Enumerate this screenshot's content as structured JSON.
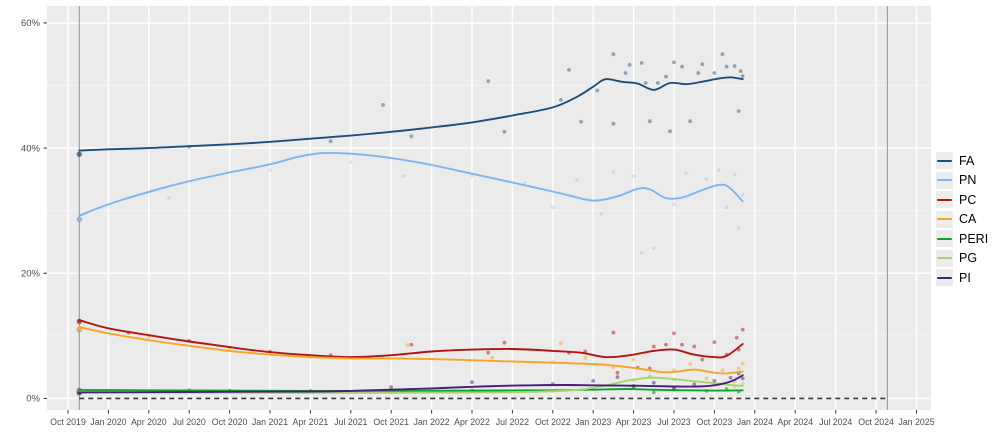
{
  "chart_data": {
    "type": "line",
    "title": "",
    "xlabel": "",
    "ylabel": "",
    "grid": true,
    "legend_position": "right",
    "x_axis": {
      "unit": "quarters since Oct 2019",
      "domain_quarters": [
        -0.52,
        21.36
      ],
      "tick_quarters": [
        0,
        1,
        2,
        3,
        4,
        5,
        6,
        7,
        8,
        9,
        10,
        11,
        12,
        13,
        14,
        15,
        16,
        17,
        18,
        19,
        20,
        21
      ],
      "tick_labels": [
        "Oct 2019",
        "Jan 2020",
        "Apr 2020",
        "Jul 2020",
        "Oct 2020",
        "Jan 2021",
        "Apr 2021",
        "Jul 2021",
        "Oct 2021",
        "Jan 2022",
        "Apr 2022",
        "Jul 2022",
        "Oct 2022",
        "Jan 2023",
        "Apr 2023",
        "Jul 2023",
        "Oct 2023",
        "Jan 2024",
        "Apr 2024",
        "Jul 2024",
        "Oct 2024",
        "Jan 2025"
      ]
    },
    "y_axis": {
      "domain": [
        -1.85,
        62.7
      ],
      "tick_values": [
        0,
        20,
        40,
        60
      ],
      "tick_labels": [
        "0%",
        "20%",
        "40%",
        "60%"
      ],
      "minor_values": [
        10,
        30,
        50
      ]
    },
    "annotations": {
      "event_vlines_q": [
        0.28,
        20.28
      ],
      "dashed_zero_line": {
        "y": 0,
        "from_q": 0.28,
        "to_q": 20.28
      }
    },
    "election_2019_points": {
      "q": 0.28,
      "results": [
        {
          "party": "FA",
          "value": 39.0
        },
        {
          "party": "PN",
          "value": 28.6
        },
        {
          "party": "PC",
          "value": 12.3
        },
        {
          "party": "CA",
          "value": 11.0
        },
        {
          "party": "PERI",
          "value": 1.3
        },
        {
          "party": "PG",
          "value": 1.0
        },
        {
          "party": "PI",
          "value": 0.9
        }
      ]
    },
    "series": [
      {
        "name": "FA",
        "color": "#1f4e7a",
        "point_opacity": 0.45,
        "trend": [
          [
            0.28,
            39.6
          ],
          [
            1,
            39.8
          ],
          [
            2,
            40.0
          ],
          [
            3,
            40.3
          ],
          [
            4,
            40.6
          ],
          [
            5,
            41.0
          ],
          [
            6,
            41.5
          ],
          [
            7,
            42.0
          ],
          [
            8,
            42.6
          ],
          [
            9,
            43.3
          ],
          [
            10,
            44.1
          ],
          [
            11,
            45.2
          ],
          [
            12,
            46.5
          ],
          [
            12.6,
            48.2
          ],
          [
            13,
            49.8
          ],
          [
            13.3,
            51.0
          ],
          [
            13.7,
            50.6
          ],
          [
            14.1,
            50.3
          ],
          [
            14.5,
            49.3
          ],
          [
            14.9,
            50.4
          ],
          [
            15.3,
            50.2
          ],
          [
            15.7,
            50.6
          ],
          [
            16.1,
            51.1
          ],
          [
            16.4,
            51.3
          ],
          [
            16.7,
            51.0
          ]
        ],
        "points": [
          [
            3.0,
            40.2
          ],
          [
            6.5,
            41.1
          ],
          [
            7.8,
            46.9
          ],
          [
            8.5,
            41.9
          ],
          [
            10.4,
            50.7
          ],
          [
            10.8,
            42.6
          ],
          [
            12.2,
            47.7
          ],
          [
            12.4,
            52.5
          ],
          [
            12.7,
            44.2
          ],
          [
            13.1,
            49.2
          ],
          [
            13.5,
            55.0
          ],
          [
            13.5,
            43.9
          ],
          [
            13.8,
            52.0
          ],
          [
            13.9,
            53.3
          ],
          [
            14.2,
            53.6
          ],
          [
            14.3,
            50.4
          ],
          [
            14.4,
            44.3
          ],
          [
            14.6,
            50.4
          ],
          [
            14.8,
            51.4
          ],
          [
            14.9,
            42.7
          ],
          [
            15.0,
            53.7
          ],
          [
            15.2,
            53.0
          ],
          [
            15.4,
            44.3
          ],
          [
            15.6,
            52.0
          ],
          [
            15.7,
            53.4
          ],
          [
            16.0,
            52.0
          ],
          [
            16.2,
            55.0
          ],
          [
            16.3,
            53.0
          ],
          [
            16.5,
            53.1
          ],
          [
            16.6,
            45.9
          ],
          [
            16.65,
            52.3
          ],
          [
            16.7,
            51.5
          ]
        ]
      },
      {
        "name": "PN",
        "color": "#7fb3f2",
        "point_opacity": 0.28,
        "trend": [
          [
            0.28,
            29.2
          ],
          [
            1,
            31.0
          ],
          [
            2,
            33.0
          ],
          [
            3,
            34.7
          ],
          [
            4,
            36.1
          ],
          [
            5,
            37.4
          ],
          [
            5.7,
            38.6
          ],
          [
            6.3,
            39.2
          ],
          [
            7,
            39.1
          ],
          [
            8,
            38.4
          ],
          [
            9,
            37.3
          ],
          [
            10,
            35.9
          ],
          [
            11,
            34.5
          ],
          [
            11.7,
            33.5
          ],
          [
            12.3,
            32.6
          ],
          [
            13,
            31.6
          ],
          [
            13.6,
            32.3
          ],
          [
            14.1,
            33.5
          ],
          [
            14.4,
            33.4
          ],
          [
            14.8,
            32.0
          ],
          [
            15.2,
            32.1
          ],
          [
            15.7,
            33.3
          ],
          [
            16.1,
            34.1
          ],
          [
            16.35,
            33.8
          ],
          [
            16.7,
            31.5
          ]
        ],
        "points": [
          [
            2.5,
            32.0
          ],
          [
            5,
            36.5
          ],
          [
            7,
            37.8
          ],
          [
            8.3,
            35.5
          ],
          [
            10,
            35.6
          ],
          [
            11.3,
            34.4
          ],
          [
            12,
            30.5
          ],
          [
            12.6,
            34.9
          ],
          [
            13.2,
            29.5
          ],
          [
            13.5,
            36.2
          ],
          [
            14.0,
            35.5
          ],
          [
            14.2,
            23.3
          ],
          [
            14.5,
            24.0
          ],
          [
            15.0,
            31.0
          ],
          [
            15.3,
            36.0
          ],
          [
            15.8,
            35.0
          ],
          [
            16.1,
            36.5
          ],
          [
            16.3,
            30.5
          ],
          [
            16.5,
            35.8
          ],
          [
            16.6,
            27.2
          ],
          [
            16.7,
            32.5
          ]
        ]
      },
      {
        "name": "PC",
        "color": "#b31412",
        "point_opacity": 0.5,
        "trend": [
          [
            0.28,
            12.5
          ],
          [
            1,
            11.2
          ],
          [
            2,
            10.1
          ],
          [
            3,
            9.1
          ],
          [
            4,
            8.2
          ],
          [
            5,
            7.4
          ],
          [
            6,
            6.9
          ],
          [
            7,
            6.6
          ],
          [
            8,
            6.9
          ],
          [
            9,
            7.5
          ],
          [
            10,
            7.8
          ],
          [
            11,
            7.9
          ],
          [
            12,
            7.6
          ],
          [
            12.7,
            7.3
          ],
          [
            13.3,
            6.6
          ],
          [
            13.9,
            6.9
          ],
          [
            14.5,
            7.6
          ],
          [
            15,
            7.8
          ],
          [
            15.5,
            7.0
          ],
          [
            16,
            6.6
          ],
          [
            16.3,
            6.8
          ],
          [
            16.7,
            8.7
          ]
        ],
        "points": [
          [
            1.5,
            10.5
          ],
          [
            3,
            9.2
          ],
          [
            5,
            7.5
          ],
          [
            6.5,
            6.9
          ],
          [
            8.5,
            8.6
          ],
          [
            10.4,
            7.3
          ],
          [
            10.8,
            8.9
          ],
          [
            12.4,
            7.3
          ],
          [
            12.8,
            7.5
          ],
          [
            13.5,
            10.5
          ],
          [
            13.6,
            4.1
          ],
          [
            14.1,
            4.9
          ],
          [
            14.4,
            4.8
          ],
          [
            14.5,
            8.3
          ],
          [
            14.8,
            8.6
          ],
          [
            15.0,
            10.4
          ],
          [
            15.2,
            8.6
          ],
          [
            15.5,
            8.3
          ],
          [
            15.7,
            6.2
          ],
          [
            16.0,
            9.0
          ],
          [
            16.3,
            7.0
          ],
          [
            16.55,
            9.7
          ],
          [
            16.6,
            7.8
          ],
          [
            16.7,
            11.0
          ]
        ]
      },
      {
        "name": "CA",
        "color": "#f7a525",
        "point_opacity": 0.5,
        "trend": [
          [
            0.28,
            11.4
          ],
          [
            1,
            10.4
          ],
          [
            2,
            9.3
          ],
          [
            3,
            8.4
          ],
          [
            4,
            7.6
          ],
          [
            5,
            7.0
          ],
          [
            6,
            6.6
          ],
          [
            7,
            6.4
          ],
          [
            8,
            6.4
          ],
          [
            9,
            6.3
          ],
          [
            10,
            6.1
          ],
          [
            11,
            5.9
          ],
          [
            12,
            5.7
          ],
          [
            13,
            5.5
          ],
          [
            13.6,
            5.2
          ],
          [
            14.2,
            4.7
          ],
          [
            14.7,
            4.2
          ],
          [
            15.1,
            4.3
          ],
          [
            15.5,
            4.6
          ],
          [
            16,
            4.1
          ],
          [
            16.3,
            4.0
          ],
          [
            16.7,
            4.3
          ]
        ],
        "points": [
          [
            2,
            9.8
          ],
          [
            4,
            8.0
          ],
          [
            6,
            6.6
          ],
          [
            8.4,
            8.5
          ],
          [
            10.5,
            6.5
          ],
          [
            12,
            5.8
          ],
          [
            12.2,
            8.8
          ],
          [
            12.8,
            6.5
          ],
          [
            13.5,
            5.0
          ],
          [
            14,
            6.2
          ],
          [
            14.4,
            3.4
          ],
          [
            15,
            4.5
          ],
          [
            15.4,
            5.5
          ],
          [
            15.8,
            3.2
          ],
          [
            16.2,
            4.5
          ],
          [
            16.5,
            2.7
          ],
          [
            16.6,
            4.8
          ],
          [
            16.7,
            5.6
          ]
        ]
      },
      {
        "name": "PERI",
        "color": "#12a12c",
        "point_opacity": 0.6,
        "trend": [
          [
            0.28,
            1.35
          ],
          [
            2,
            1.3
          ],
          [
            4,
            1.25
          ],
          [
            6,
            1.2
          ],
          [
            8,
            1.2
          ],
          [
            10,
            1.25
          ],
          [
            12,
            1.3
          ],
          [
            13,
            1.4
          ],
          [
            13.8,
            1.5
          ],
          [
            14.5,
            1.4
          ],
          [
            15.2,
            1.3
          ],
          [
            16,
            1.25
          ],
          [
            16.7,
            1.3
          ]
        ],
        "points": [
          [
            3,
            1.3
          ],
          [
            6,
            1.2
          ],
          [
            10,
            1.3
          ],
          [
            13,
            1.5
          ],
          [
            14,
            1.8
          ],
          [
            14.5,
            1.0
          ],
          [
            15,
            1.4
          ],
          [
            15.8,
            1.2
          ],
          [
            16.3,
            1.5
          ],
          [
            16.6,
            1.1
          ]
        ]
      },
      {
        "name": "PG",
        "color": "#a5d66b",
        "point_opacity": 0.55,
        "trend": [
          [
            0.28,
            1.05
          ],
          [
            2,
            0.95
          ],
          [
            4,
            0.9
          ],
          [
            6,
            0.88
          ],
          [
            8,
            0.9
          ],
          [
            10,
            0.95
          ],
          [
            11,
            1.0
          ],
          [
            12,
            1.15
          ],
          [
            12.8,
            1.5
          ],
          [
            13.4,
            2.2
          ],
          [
            13.9,
            2.9
          ],
          [
            14.4,
            3.3
          ],
          [
            14.9,
            3.15
          ],
          [
            15.4,
            2.8
          ],
          [
            15.9,
            2.5
          ],
          [
            16.3,
            2.2
          ],
          [
            16.7,
            2.0
          ]
        ],
        "points": [
          [
            8,
            0.9
          ],
          [
            12,
            1.2
          ],
          [
            13.5,
            2.2
          ],
          [
            14,
            2.9
          ],
          [
            14.4,
            3.5
          ],
          [
            15,
            3.0
          ],
          [
            15.5,
            2.6
          ],
          [
            16,
            2.3
          ],
          [
            16.5,
            1.9
          ],
          [
            16.7,
            2.4
          ]
        ]
      },
      {
        "name": "PI",
        "color": "#471d7d",
        "point_opacity": 0.5,
        "trend": [
          [
            0.28,
            0.95
          ],
          [
            2,
            1.0
          ],
          [
            4,
            1.05
          ],
          [
            6,
            1.1
          ],
          [
            7,
            1.2
          ],
          [
            8,
            1.4
          ],
          [
            9,
            1.6
          ],
          [
            10,
            1.85
          ],
          [
            10.7,
            2.0
          ],
          [
            11.5,
            2.1
          ],
          [
            12.3,
            2.15
          ],
          [
            13,
            2.1
          ],
          [
            13.7,
            2.05
          ],
          [
            14.3,
            2.0
          ],
          [
            15,
            1.9
          ],
          [
            15.6,
            1.9
          ],
          [
            16,
            2.1
          ],
          [
            16.4,
            2.7
          ],
          [
            16.7,
            3.7
          ]
        ],
        "points": [
          [
            4,
            1.2
          ],
          [
            8,
            1.8
          ],
          [
            10,
            2.6
          ],
          [
            12,
            2.3
          ],
          [
            13,
            2.8
          ],
          [
            13.6,
            3.4
          ],
          [
            14,
            2.0
          ],
          [
            14.5,
            2.5
          ],
          [
            15,
            1.7
          ],
          [
            15.5,
            2.2
          ],
          [
            16,
            2.8
          ],
          [
            16.4,
            3.3
          ],
          [
            16.6,
            4.0
          ],
          [
            16.7,
            3.2
          ]
        ]
      }
    ]
  },
  "legend": {
    "items": [
      {
        "label": "FA",
        "color": "#1f4e7a"
      },
      {
        "label": "PN",
        "color": "#7fb3f2"
      },
      {
        "label": "PC",
        "color": "#b31412"
      },
      {
        "label": "CA",
        "color": "#f7a525"
      },
      {
        "label": "PERI",
        "color": "#12a12c"
      },
      {
        "label": "PG",
        "color": "#a5d66b"
      },
      {
        "label": "PI",
        "color": "#471d7d"
      }
    ]
  },
  "styles": {
    "panel_bg": "#ebebeb",
    "grid_major": "#ffffff",
    "grid_minor_opacity": 0.55,
    "axis_text": "#4d4d4d",
    "tick_mark": "#333333",
    "event_vline": "#9b9b9b",
    "dashed_line": "#3a3a3a"
  }
}
